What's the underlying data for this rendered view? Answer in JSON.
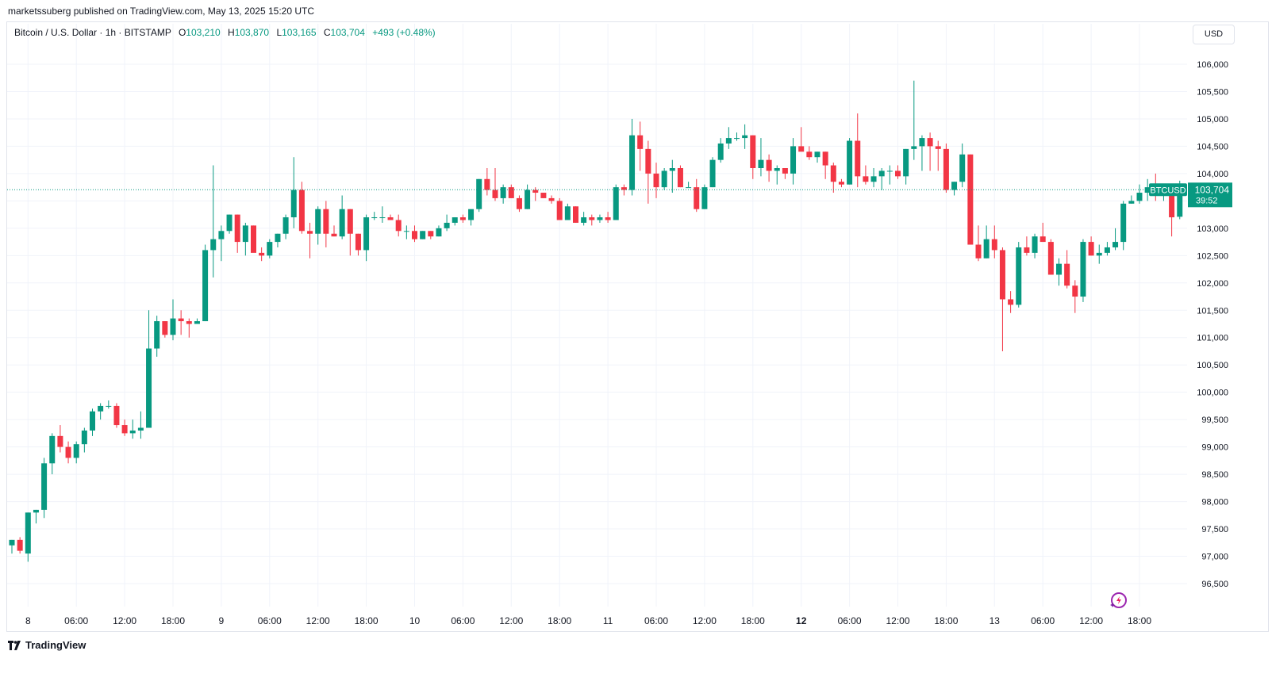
{
  "publisher": "marketssuberg published on TradingView.com, May 13, 2025 15:20 UTC",
  "legend": {
    "symbol": "Bitcoin / U.S. Dollar · 1h · BITSTAMP",
    "open_label": "O",
    "open": "103,210",
    "high_label": "H",
    "high": "103,870",
    "low_label": "L",
    "low": "103,165",
    "close_label": "C",
    "close": "103,704",
    "change": "+493 (+0.48%)"
  },
  "currency": "USD",
  "price_tag": {
    "ticker": "BTCUSD",
    "price": "103,704",
    "countdown": "39:52"
  },
  "footer": {
    "brand": "TradingView"
  },
  "colors": {
    "up": "#089981",
    "down": "#f23645",
    "grid": "#f0f3fa",
    "text": "#131722",
    "tick_text": "#131722"
  },
  "chart_data": {
    "type": "candlestick",
    "ylim": [
      96000,
      106500
    ],
    "y_ticks": [
      "96,500",
      "97,000",
      "97,500",
      "98,000",
      "98,500",
      "99,000",
      "99,500",
      "100,000",
      "100,500",
      "101,000",
      "101,500",
      "102,000",
      "102,500",
      "103,000",
      "103,500",
      "104,000",
      "104,500",
      "105,000",
      "105,500",
      "106,000"
    ],
    "x_ticks": [
      "8",
      "06:00",
      "12:00",
      "18:00",
      "9",
      "06:00",
      "12:00",
      "18:00",
      "10",
      "06:00",
      "12:00",
      "18:00",
      "11",
      "06:00",
      "12:00",
      "18:00",
      "12",
      "06:00",
      "12:00",
      "18:00",
      "13",
      "06:00",
      "12:00",
      "18:00"
    ],
    "x_tick_bold": [
      false,
      false,
      false,
      false,
      false,
      false,
      false,
      false,
      false,
      false,
      false,
      false,
      false,
      false,
      false,
      false,
      true,
      false,
      false,
      false,
      false,
      false,
      false,
      false
    ],
    "last_price": 103704,
    "candles": [
      [
        97200,
        97300,
        97050,
        97300
      ],
      [
        97300,
        97350,
        97050,
        97100
      ],
      [
        97050,
        97800,
        96900,
        97800
      ],
      [
        97800,
        97850,
        97600,
        97850
      ],
      [
        97850,
        98800,
        97700,
        98700
      ],
      [
        98700,
        99250,
        98500,
        99200
      ],
      [
        99200,
        99400,
        98900,
        99000
      ],
      [
        99000,
        99100,
        98700,
        98800
      ],
      [
        98800,
        99100,
        98700,
        99050
      ],
      [
        99050,
        99350,
        98900,
        99300
      ],
      [
        99300,
        99700,
        99200,
        99650
      ],
      [
        99650,
        99800,
        99500,
        99750
      ],
      [
        99750,
        99850,
        99700,
        99750
      ],
      [
        99750,
        99800,
        99350,
        99400
      ],
      [
        99400,
        99500,
        99200,
        99250
      ],
      [
        99250,
        99500,
        99150,
        99300
      ],
      [
        99300,
        99650,
        99150,
        99350
      ],
      [
        99350,
        101500,
        99350,
        100800
      ],
      [
        100800,
        101400,
        100650,
        101300
      ],
      [
        101300,
        101300,
        101000,
        101050
      ],
      [
        101050,
        101700,
        100950,
        101350
      ],
      [
        101350,
        101500,
        101050,
        101300
      ],
      [
        101300,
        101350,
        101000,
        101250
      ],
      [
        101250,
        101350,
        101250,
        101300
      ],
      [
        101300,
        102700,
        101300,
        102600
      ],
      [
        102600,
        104150,
        102100,
        102800
      ],
      [
        102800,
        103050,
        102400,
        102950
      ],
      [
        102950,
        103250,
        102900,
        103250
      ],
      [
        103250,
        103250,
        102550,
        102750
      ],
      [
        102750,
        103100,
        102500,
        103050
      ],
      [
        103050,
        103050,
        102600,
        102550
      ],
      [
        102550,
        102650,
        102400,
        102500
      ],
      [
        102500,
        102800,
        102450,
        102750
      ],
      [
        102750,
        102900,
        102650,
        102900
      ],
      [
        102900,
        103250,
        102800,
        103200
      ],
      [
        103200,
        104300,
        103000,
        103700
      ],
      [
        103700,
        103850,
        102900,
        102950
      ],
      [
        102950,
        103100,
        102450,
        102900
      ],
      [
        102900,
        103400,
        102700,
        103350
      ],
      [
        103350,
        103500,
        102650,
        102900
      ],
      [
        102900,
        103050,
        102850,
        102850
      ],
      [
        102850,
        103600,
        102800,
        103350
      ],
      [
        103350,
        103350,
        102500,
        102900
      ],
      [
        102900,
        102900,
        102500,
        102600
      ],
      [
        102600,
        103250,
        102400,
        103200
      ],
      [
        103200,
        103300,
        103150,
        103200
      ],
      [
        103200,
        103400,
        103100,
        103200
      ],
      [
        103200,
        103250,
        103150,
        103150
      ],
      [
        103150,
        103250,
        102850,
        102950
      ],
      [
        102950,
        103050,
        102800,
        102950
      ],
      [
        102950,
        103050,
        102750,
        102800
      ],
      [
        102800,
        102950,
        102800,
        102950
      ],
      [
        102950,
        102950,
        102800,
        102850
      ],
      [
        102850,
        103050,
        102850,
        103000
      ],
      [
        103000,
        103250,
        102950,
        103100
      ],
      [
        103100,
        103200,
        103050,
        103200
      ],
      [
        103200,
        103250,
        103100,
        103150
      ],
      [
        103150,
        103250,
        103050,
        103350
      ],
      [
        103350,
        103900,
        103300,
        103900
      ],
      [
        103900,
        104100,
        103600,
        103700
      ],
      [
        103700,
        104100,
        103500,
        103550
      ],
      [
        103550,
        103800,
        103450,
        103750
      ],
      [
        103750,
        103800,
        103550,
        103550
      ],
      [
        103550,
        103600,
        103300,
        103350
      ],
      [
        103350,
        103800,
        103350,
        103700
      ],
      [
        103700,
        103750,
        103500,
        103650
      ],
      [
        103650,
        103650,
        103550,
        103550
      ],
      [
        103550,
        103600,
        103450,
        103500
      ],
      [
        103500,
        103550,
        103150,
        103150
      ],
      [
        103150,
        103450,
        103150,
        103400
      ],
      [
        103400,
        103400,
        103100,
        103100
      ],
      [
        103100,
        103300,
        103050,
        103200
      ],
      [
        103200,
        103250,
        103050,
        103150
      ],
      [
        103150,
        103250,
        103100,
        103200
      ],
      [
        103200,
        103300,
        103100,
        103150
      ],
      [
        103150,
        103800,
        103150,
        103750
      ],
      [
        103750,
        103800,
        103600,
        103700
      ],
      [
        103700,
        105000,
        103600,
        104700
      ],
      [
        104700,
        104950,
        104050,
        104450
      ],
      [
        104450,
        104600,
        103450,
        104000
      ],
      [
        104000,
        104200,
        103550,
        103750
      ],
      [
        103750,
        104100,
        103700,
        104050
      ],
      [
        104050,
        104250,
        103650,
        104100
      ],
      [
        104100,
        104150,
        103750,
        103750
      ],
      [
        103750,
        103850,
        103750,
        103750
      ],
      [
        103750,
        103900,
        103300,
        103350
      ],
      [
        103350,
        103800,
        103350,
        103750
      ],
      [
        103750,
        104300,
        103750,
        104250
      ],
      [
        104250,
        104650,
        104200,
        104550
      ],
      [
        104550,
        104850,
        104450,
        104650
      ],
      [
        104650,
        104750,
        104600,
        104650
      ],
      [
        104650,
        104900,
        104450,
        104700
      ],
      [
        104700,
        104700,
        103900,
        104100
      ],
      [
        104100,
        104650,
        103950,
        104250
      ],
      [
        104250,
        104350,
        103850,
        104050
      ],
      [
        104050,
        104150,
        103800,
        104100
      ],
      [
        104100,
        104100,
        103900,
        104000
      ],
      [
        104000,
        104650,
        103800,
        104500
      ],
      [
        104500,
        104850,
        104450,
        104400
      ],
      [
        104400,
        104500,
        104250,
        104300
      ],
      [
        104300,
        104400,
        104200,
        104400
      ],
      [
        104400,
        104400,
        103900,
        104150
      ],
      [
        104150,
        104200,
        103650,
        103850
      ],
      [
        103850,
        103900,
        103750,
        103800
      ],
      [
        103800,
        104650,
        103800,
        104600
      ],
      [
        104600,
        105100,
        103750,
        103950
      ],
      [
        103950,
        104150,
        103800,
        103850
      ],
      [
        103850,
        104100,
        103750,
        103950
      ],
      [
        103950,
        104100,
        103700,
        104050
      ],
      [
        104050,
        104150,
        103800,
        104050
      ],
      [
        104050,
        104150,
        103900,
        103950
      ],
      [
        103950,
        104450,
        103800,
        104450
      ],
      [
        104450,
        105700,
        104250,
        104500
      ],
      [
        104500,
        104700,
        104050,
        104650
      ],
      [
        104650,
        104750,
        104050,
        104500
      ],
      [
        104500,
        104600,
        104050,
        104450
      ],
      [
        104450,
        104550,
        103650,
        103700
      ],
      [
        103700,
        103850,
        103600,
        103850
      ],
      [
        103850,
        104550,
        103750,
        104350
      ],
      [
        104350,
        104350,
        102700,
        102700
      ],
      [
        102700,
        103050,
        102400,
        102450
      ],
      [
        102450,
        103050,
        102450,
        102800
      ],
      [
        102800,
        103050,
        102450,
        102600
      ],
      [
        102600,
        102650,
        100750,
        101700
      ],
      [
        101700,
        101850,
        101450,
        101600
      ],
      [
        101600,
        102750,
        101550,
        102650
      ],
      [
        102650,
        102850,
        102500,
        102550
      ],
      [
        102550,
        102900,
        102450,
        102850
      ],
      [
        102850,
        103100,
        102800,
        102750
      ],
      [
        102750,
        102800,
        102150,
        102150
      ],
      [
        102150,
        102450,
        101950,
        102350
      ],
      [
        102350,
        102600,
        101900,
        101950
      ],
      [
        101950,
        102050,
        101450,
        101750
      ],
      [
        101750,
        102800,
        101650,
        102750
      ],
      [
        102750,
        102850,
        102500,
        102500
      ],
      [
        102500,
        102700,
        102350,
        102550
      ],
      [
        102550,
        102750,
        102500,
        102650
      ],
      [
        102650,
        103000,
        102600,
        102750
      ],
      [
        102750,
        103500,
        102600,
        103450
      ],
      [
        103450,
        103600,
        103450,
        103500
      ],
      [
        103500,
        103800,
        103450,
        103650
      ],
      [
        103650,
        103900,
        103500,
        103750
      ],
      [
        103750,
        104000,
        103500,
        103700
      ],
      [
        103700,
        103800,
        103500,
        103750
      ],
      [
        103750,
        103800,
        102850,
        103200
      ],
      [
        103210,
        103870,
        103165,
        103704
      ]
    ]
  }
}
